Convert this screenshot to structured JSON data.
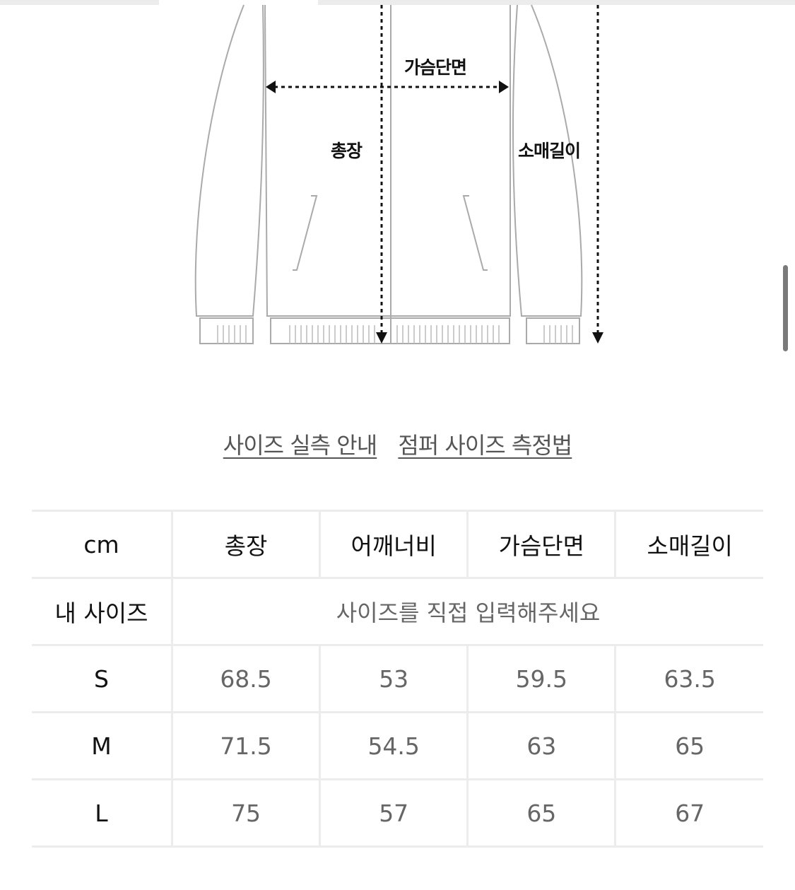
{
  "diagram": {
    "labels": {
      "chest": "가슴단면",
      "length": "총장",
      "sleeve": "소매길이"
    }
  },
  "links": [
    {
      "label": "사이즈 실측 안내"
    },
    {
      "label": "점퍼 사이즈 측정법"
    }
  ],
  "table": {
    "unit": "cm",
    "headers": [
      "총장",
      "어깨너비",
      "가슴단면",
      "소매길이"
    ],
    "my_size": {
      "label": "내 사이즈",
      "placeholder": "사이즈를 직접 입력해주세요"
    },
    "rows": [
      {
        "size": "S",
        "values": [
          "68.5",
          "53",
          "59.5",
          "63.5"
        ]
      },
      {
        "size": "M",
        "values": [
          "71.5",
          "54.5",
          "63",
          "65"
        ]
      },
      {
        "size": "L",
        "values": [
          "75",
          "57",
          "65",
          "67"
        ]
      }
    ]
  }
}
